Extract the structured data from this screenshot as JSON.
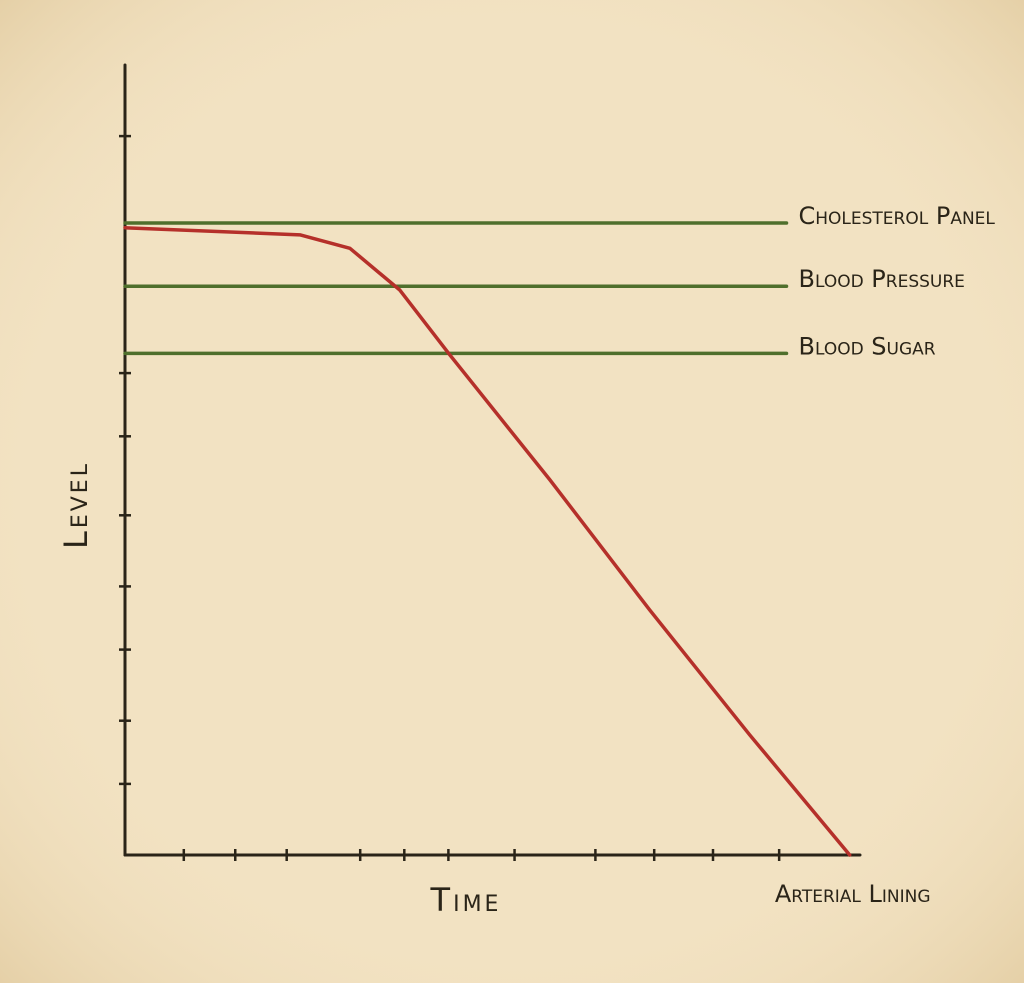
{
  "chart_data": {
    "type": "line",
    "x_label": "Time",
    "y_label": "Level",
    "xlim": [
      0,
      100
    ],
    "ylim": [
      0,
      100
    ],
    "xticks": [
      8,
      15,
      22,
      32,
      38,
      44,
      53,
      64,
      72,
      80,
      89
    ],
    "yticks": [
      9,
      17,
      26,
      34,
      43,
      53,
      61,
      91
    ],
    "series": [
      {
        "name": "Cholesterol Panel",
        "color": "#4f6f2c",
        "x": [
          0,
          90
        ],
        "values": [
          80,
          80
        ]
      },
      {
        "name": "Blood Pressure",
        "color": "#4f6f2c",
        "x": [
          0,
          90
        ],
        "values": [
          72,
          72
        ]
      },
      {
        "name": "Blood Sugar",
        "color": "#4f6f2c",
        "x": [
          0,
          90
        ],
        "values": [
          63.5,
          63.5
        ]
      },
      {
        "name": "Arterial Lining",
        "color": "#b5302a",
        "x": [
          0,
          23.8,
          30.6,
          37.4,
          44.2,
          57.8,
          71.4,
          85,
          98.6
        ],
        "values": [
          79.4,
          78.5,
          76.8,
          71.5,
          63.3,
          47.5,
          31,
          15.2,
          0
        ]
      }
    ]
  }
}
